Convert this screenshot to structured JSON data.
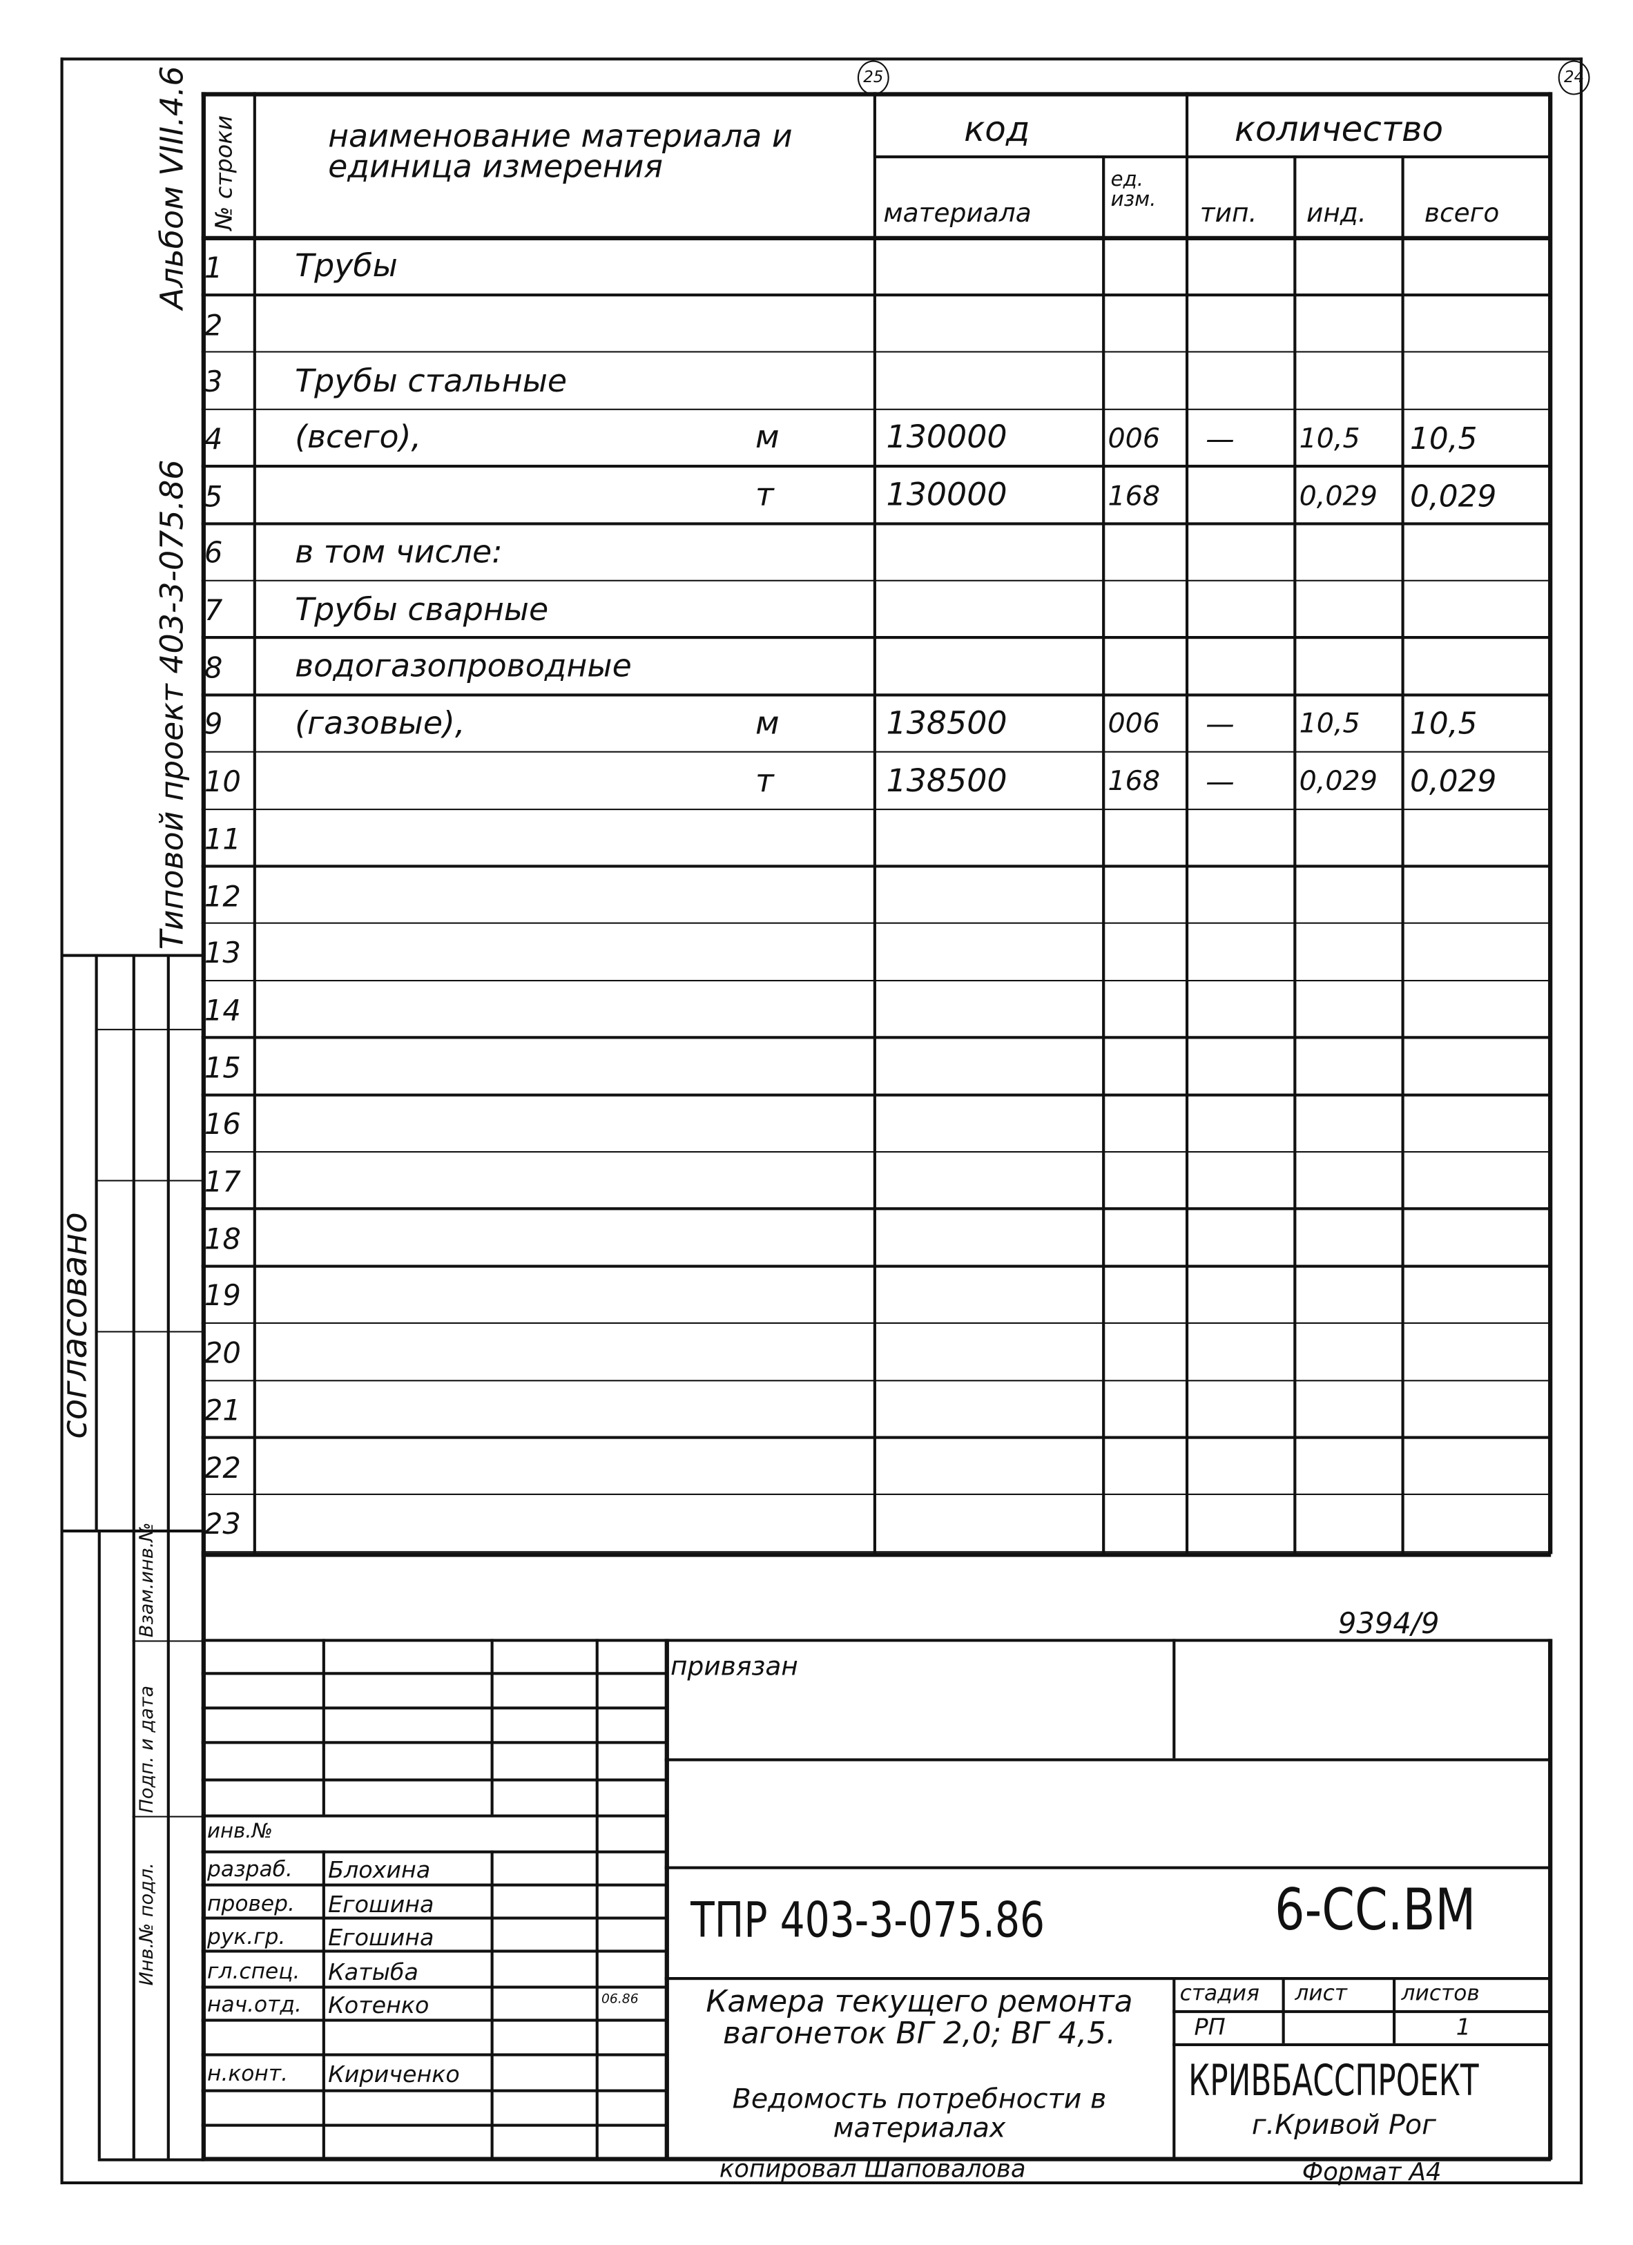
{
  "sheet_marks": {
    "page_circle_left": "25",
    "page_circle_right": "24"
  },
  "margin": {
    "project_label": "Типовой проект 403-3-075.86",
    "album_label": "Альбом VIII.4.6",
    "approved_label": "согласовано",
    "replace_inv_label": "Взам.инв.№",
    "sign_date_label": "Подп. и дата",
    "inv_original_label": "Инв.№ подл."
  },
  "table": {
    "headers": {
      "row_no": "№ строки",
      "name": "наименование материала и единица измерения",
      "code": "код",
      "quantity": "количество",
      "material": "материала",
      "unit_code": "ед. изм.",
      "typical": "тип.",
      "individual": "инд.",
      "total": "всего"
    },
    "rows": [
      {
        "n": "1",
        "name": "Трубы",
        "unit": "",
        "code": "",
        "ed": "",
        "tip": "",
        "ind": "",
        "total": ""
      },
      {
        "n": "2",
        "name": "",
        "unit": "",
        "code": "",
        "ed": "",
        "tip": "",
        "ind": "",
        "total": ""
      },
      {
        "n": "3",
        "name": "Трубы стальные",
        "unit": "",
        "code": "",
        "ed": "",
        "tip": "",
        "ind": "",
        "total": ""
      },
      {
        "n": "4",
        "name": "(всего),",
        "unit": "м",
        "code": "130000",
        "ed": "006",
        "tip": "—",
        "ind": "10,5",
        "total": "10,5"
      },
      {
        "n": "5",
        "name": "",
        "unit": "т",
        "code": "130000",
        "ed": "168",
        "tip": "",
        "ind": "0,029",
        "total": "0,029"
      },
      {
        "n": "6",
        "name": "в том числе:",
        "unit": "",
        "code": "",
        "ed": "",
        "tip": "",
        "ind": "",
        "total": ""
      },
      {
        "n": "7",
        "name": "Трубы сварные",
        "unit": "",
        "code": "",
        "ed": "",
        "tip": "",
        "ind": "",
        "total": ""
      },
      {
        "n": "8",
        "name": "водогазопроводные",
        "unit": "",
        "code": "",
        "ed": "",
        "tip": "",
        "ind": "",
        "total": ""
      },
      {
        "n": "9",
        "name": "(газовые),",
        "unit": "м",
        "code": "138500",
        "ed": "006",
        "tip": "—",
        "ind": "10,5",
        "total": "10,5"
      },
      {
        "n": "10",
        "name": "",
        "unit": "т",
        "code": "138500",
        "ed": "168",
        "tip": "—",
        "ind": "0,029",
        "total": "0,029"
      },
      {
        "n": "11",
        "name": "",
        "unit": "",
        "code": "",
        "ed": "",
        "tip": "",
        "ind": "",
        "total": ""
      },
      {
        "n": "12",
        "name": "",
        "unit": "",
        "code": "",
        "ed": "",
        "tip": "",
        "ind": "",
        "total": ""
      },
      {
        "n": "13",
        "name": "",
        "unit": "",
        "code": "",
        "ed": "",
        "tip": "",
        "ind": "",
        "total": ""
      },
      {
        "n": "14",
        "name": "",
        "unit": "",
        "code": "",
        "ed": "",
        "tip": "",
        "ind": "",
        "total": ""
      },
      {
        "n": "15",
        "name": "",
        "unit": "",
        "code": "",
        "ed": "",
        "tip": "",
        "ind": "",
        "total": ""
      },
      {
        "n": "16",
        "name": "",
        "unit": "",
        "code": "",
        "ed": "",
        "tip": "",
        "ind": "",
        "total": ""
      },
      {
        "n": "17",
        "name": "",
        "unit": "",
        "code": "",
        "ed": "",
        "tip": "",
        "ind": "",
        "total": ""
      },
      {
        "n": "18",
        "name": "",
        "unit": "",
        "code": "",
        "ed": "",
        "tip": "",
        "ind": "",
        "total": ""
      },
      {
        "n": "19",
        "name": "",
        "unit": "",
        "code": "",
        "ed": "",
        "tip": "",
        "ind": "",
        "total": ""
      },
      {
        "n": "20",
        "name": "",
        "unit": "",
        "code": "",
        "ed": "",
        "tip": "",
        "ind": "",
        "total": ""
      },
      {
        "n": "21",
        "name": "",
        "unit": "",
        "code": "",
        "ed": "",
        "tip": "",
        "ind": "",
        "total": ""
      },
      {
        "n": "22",
        "name": "",
        "unit": "",
        "code": "",
        "ed": "",
        "tip": "",
        "ind": "",
        "total": ""
      },
      {
        "n": "23",
        "name": "",
        "unit": "",
        "code": "",
        "ed": "",
        "tip": "",
        "ind": "",
        "total": ""
      }
    ]
  },
  "archive_number": "9394/9",
  "title_block": {
    "bound_label": "привязан",
    "inv_no_label": "инв.№",
    "staff": [
      {
        "role": "разраб.",
        "name": "Блохина",
        "date": ""
      },
      {
        "role": "провер.",
        "name": "Егошина",
        "date": ""
      },
      {
        "role": "рук.гр.",
        "name": "Егошина",
        "date": ""
      },
      {
        "role": "гл.спец.",
        "name": "Катыба",
        "date": ""
      },
      {
        "role": "нач.отд.",
        "name": "Котенко",
        "date": "06.86"
      },
      {
        "role": "",
        "name": "",
        "date": ""
      },
      {
        "role": "н.конт.",
        "name": "Кириченко",
        "date": ""
      }
    ],
    "doc_code": "ТПР 403-3-075.86",
    "doc_mark": "6-СС.ВМ",
    "object_name": "Камера текущего ремонта вагонеток ВГ 2,0; ВГ 4,5.",
    "doc_name": "Ведомость потребности в материалах",
    "stage_label": "стадия",
    "sheet_label": "лист",
    "sheets_label": "листов",
    "stage_value": "РП",
    "sheet_value": "",
    "sheets_value": "1",
    "org_name": "КРИВБАССПРОЕКТ",
    "org_city": "г.Кривой Рог"
  },
  "footer": {
    "copied_by": "копировал Шаповалова",
    "format": "Формат А4"
  }
}
